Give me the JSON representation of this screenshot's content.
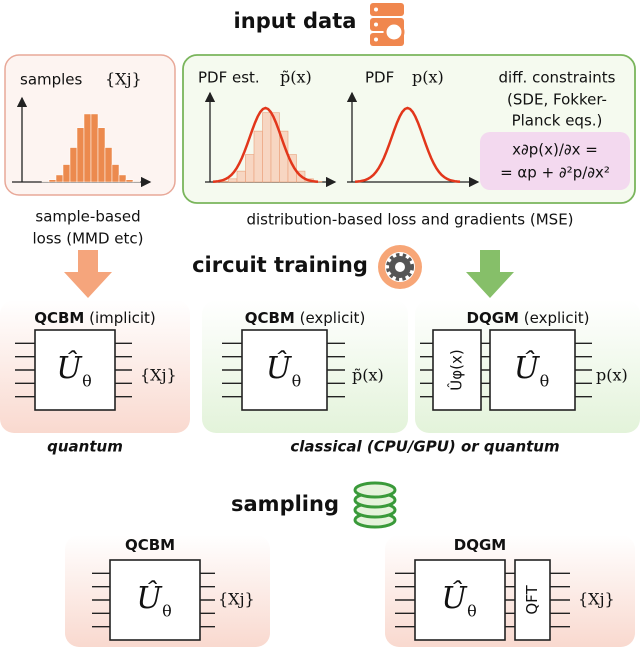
{
  "headings": {
    "input_data": "input data",
    "circuit_training": "circuit training",
    "sampling": "sampling"
  },
  "samples_panel": {
    "label": "samples",
    "set": "{Xj}"
  },
  "distribution_panel": {
    "pdf_est": "PDF est.",
    "pdf_est_symbol": "p̃(x)",
    "pdf": "PDF",
    "pdf_symbol": "p(x)",
    "constraints": [
      "diff. constraints",
      "(SDE, Fokker-",
      "Planck eqs.)"
    ],
    "equation": [
      "x∂p(x)/∂x =",
      "= αp + ∂²p/∂x²"
    ]
  },
  "captions": {
    "sample_loss": [
      "sample-based",
      "loss (MMD etc)"
    ],
    "distribution_loss": "distribution-based loss and gradients (MSE)"
  },
  "training": [
    {
      "model": "QCBM",
      "mode": "(implicit)",
      "gate": "Û",
      "gate_sub": "θ",
      "output": "{Xj}"
    },
    {
      "model": "QCBM",
      "mode": "(explicit)",
      "gate": "Û",
      "gate_sub": "θ",
      "output": "p̃(x)"
    },
    {
      "model": "DQGM",
      "mode": "(explicit)",
      "feature_map": "Ûφ(x)",
      "gate": "Û",
      "gate_sub": "θ",
      "output": "p(x)"
    }
  ],
  "hardware": {
    "left": "quantum",
    "right": "classical (CPU/GPU) or quantum"
  },
  "sampling": [
    {
      "model": "QCBM",
      "gate": "Û",
      "gate_sub": "θ",
      "output": "{Xj}"
    },
    {
      "model": "DQGM",
      "gate": "Û",
      "gate_sub": "θ",
      "transform": "QFT",
      "output": "{Xj}"
    }
  ]
}
